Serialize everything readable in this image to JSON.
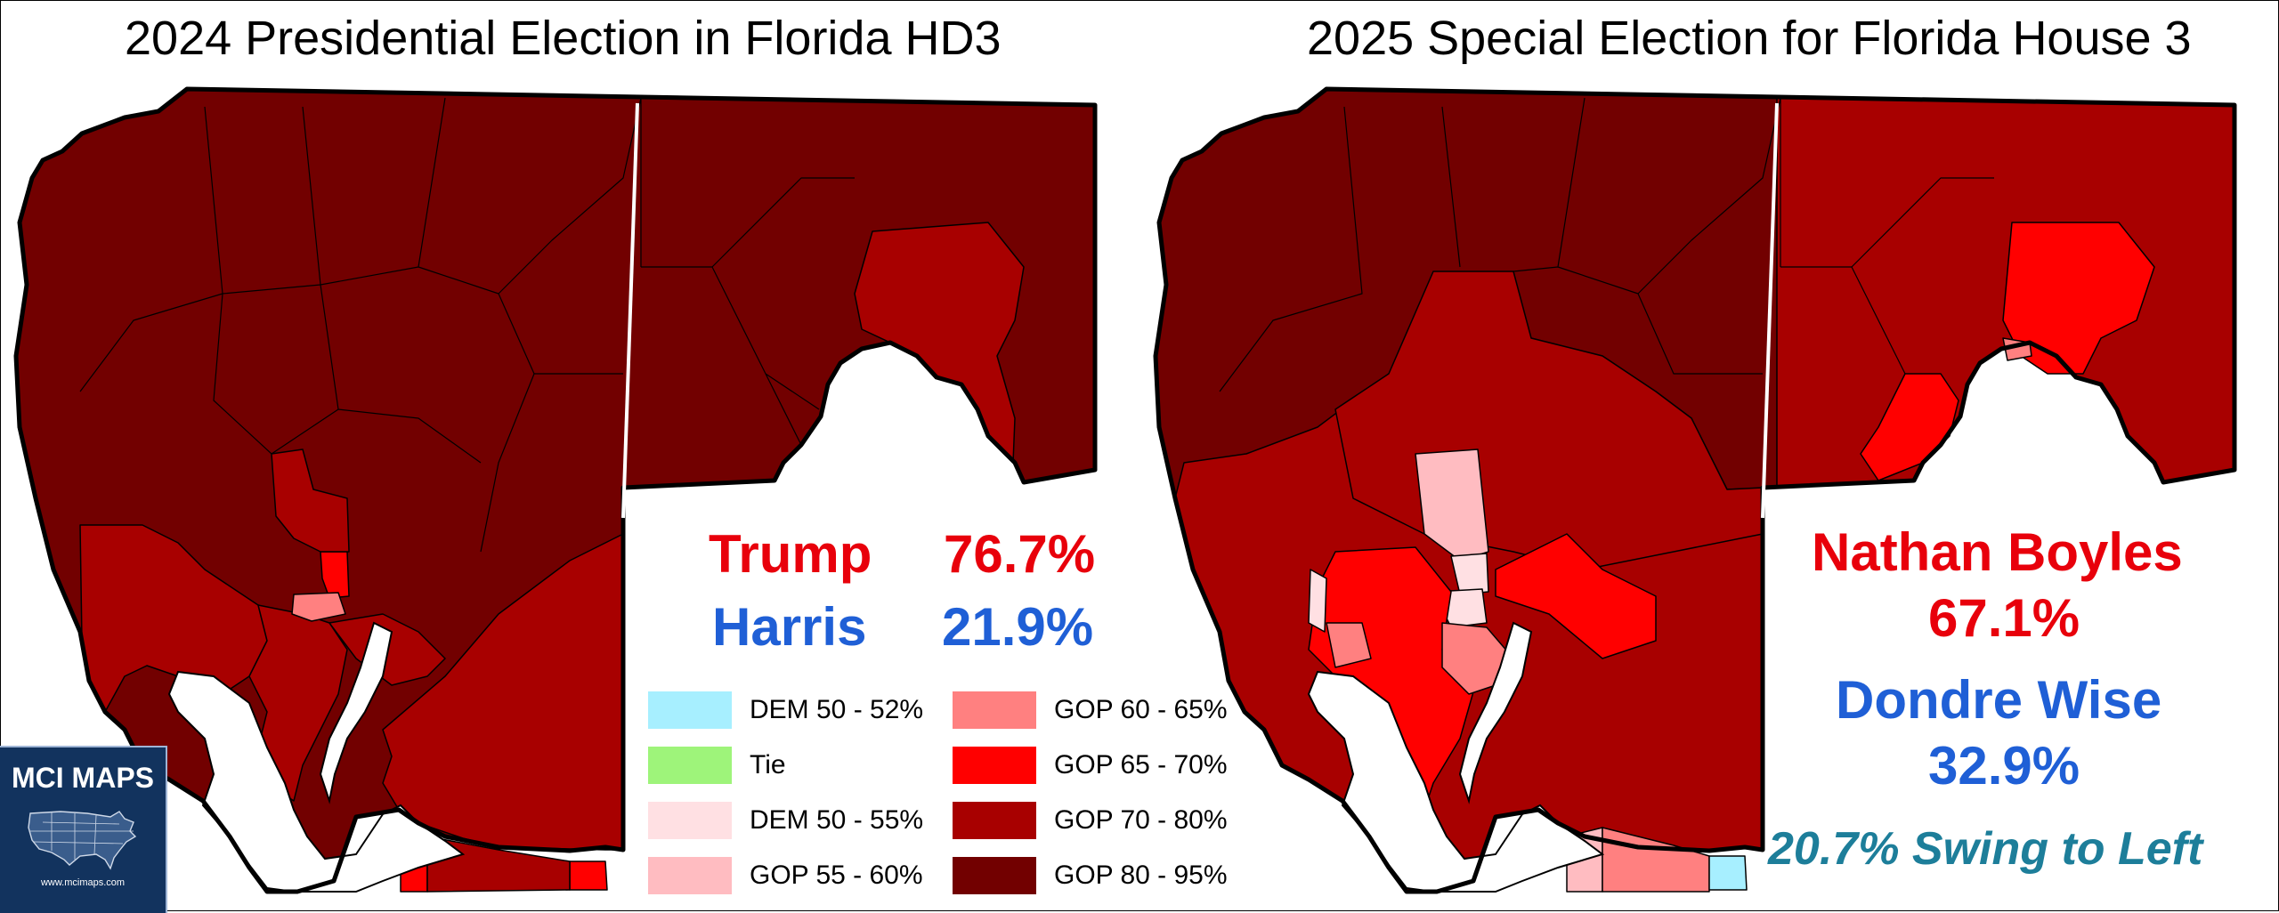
{
  "left_map": {
    "title": "2024 Presidential Election in Florida HD3",
    "results": [
      {
        "name": "Trump",
        "pct": "76.7%",
        "party": "GOP"
      },
      {
        "name": "Harris",
        "pct": "21.9%",
        "party": "DEM"
      }
    ]
  },
  "right_map": {
    "title": "2025 Special Election for Florida House 3",
    "results": [
      {
        "name": "Nathan Boyles",
        "pct": "67.1%",
        "party": "GOP"
      },
      {
        "name": "Dondre Wise",
        "pct": "32.9%",
        "party": "DEM"
      }
    ],
    "swing_note": "20.7% Swing to Left"
  },
  "legend": [
    {
      "label": "DEM 50 - 52%",
      "color": "#a7efff"
    },
    {
      "label": "Tie",
      "color": "#9ef47a"
    },
    {
      "label": "DEM 50 - 55%",
      "color": "#ffe0e3"
    },
    {
      "label": "GOP 55 - 60%",
      "color": "#ffbcc1"
    },
    {
      "label": "GOP 60 - 65%",
      "color": "#ff8080"
    },
    {
      "label": "GOP 65 - 70%",
      "color": "#ff0000"
    },
    {
      "label": "GOP 70 - 80%",
      "color": "#a80000"
    },
    {
      "label": "GOP 80 - 95%",
      "color": "#720000"
    }
  ],
  "logo": {
    "text": "MCI MAPS",
    "url": "www.mcimaps.com",
    "icon": "usa-map-icon"
  },
  "colors": {
    "gop_text": "#e8000b",
    "dem_text": "#1f5fd6",
    "swing_text": "#1d7e9a"
  }
}
